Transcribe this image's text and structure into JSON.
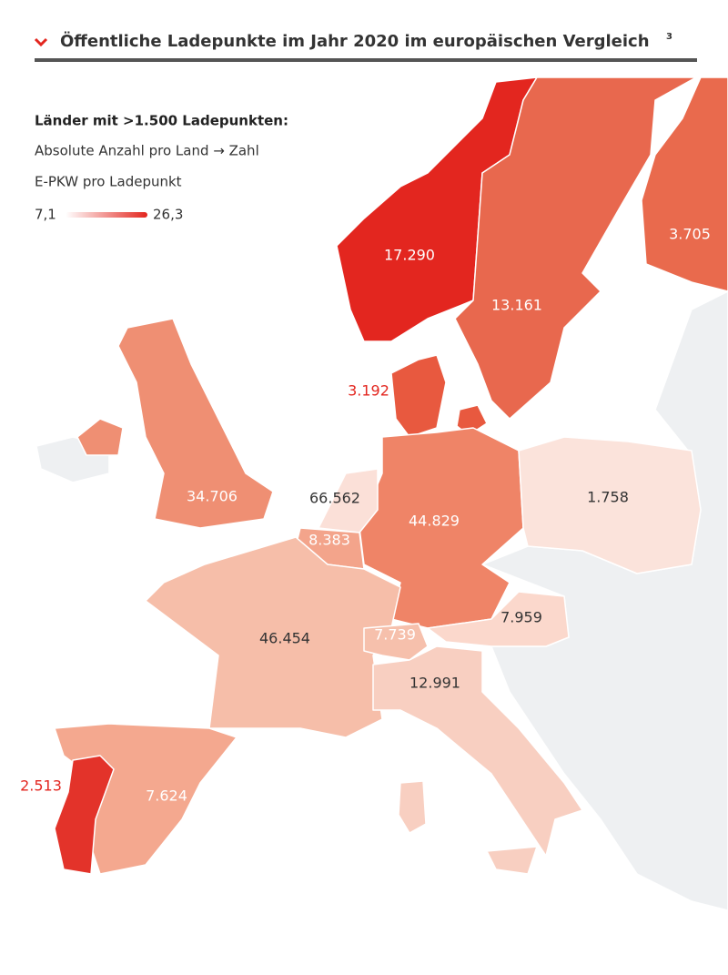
{
  "header": {
    "title": "Öffentliche Ladepunkte im Jahr 2020 im europäischen Vergleich",
    "footnote": "3"
  },
  "legend": {
    "heading": "Länder mit >1.500 Ladepunkten:",
    "line1": "Absolute Anzahl pro Land → Zahl",
    "line2": "E-PKW pro Ladepunkt",
    "min": "7,1",
    "max": "26,3"
  },
  "countries": [
    {
      "label": "17.290"
    },
    {
      "label": "13.161"
    },
    {
      "label": "3.705"
    },
    {
      "label": "3.192"
    },
    {
      "label": "34.706"
    },
    {
      "label": "66.562"
    },
    {
      "label": "44.829"
    },
    {
      "label": "1.758"
    },
    {
      "label": "8.383"
    },
    {
      "label": "46.454"
    },
    {
      "label": "7.739"
    },
    {
      "label": "7.959"
    },
    {
      "label": "12.991"
    },
    {
      "label": "2.513"
    },
    {
      "label": "7.624"
    }
  ]
}
